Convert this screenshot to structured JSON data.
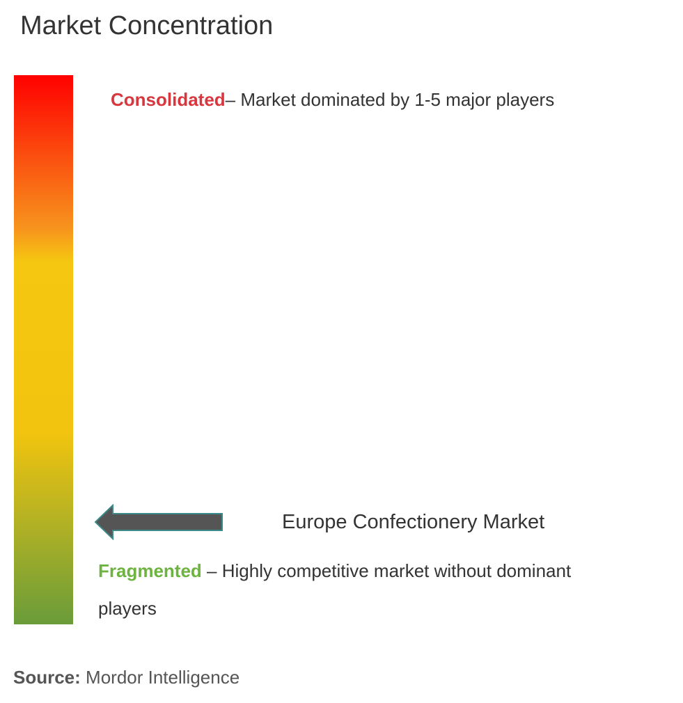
{
  "header": {
    "title": "Market Concentration"
  },
  "scale": {
    "top": {
      "label": "Consolidated",
      "description": "– Market dominated by 1-5 major players"
    },
    "bottom": {
      "label": "Fragmented",
      "description": "– Highly competitive market without dominant players"
    }
  },
  "marker": {
    "label": "Europe Confectionery Market"
  },
  "footer": {
    "source_label": "Source:",
    "source": "Mordor Intelligence"
  }
}
